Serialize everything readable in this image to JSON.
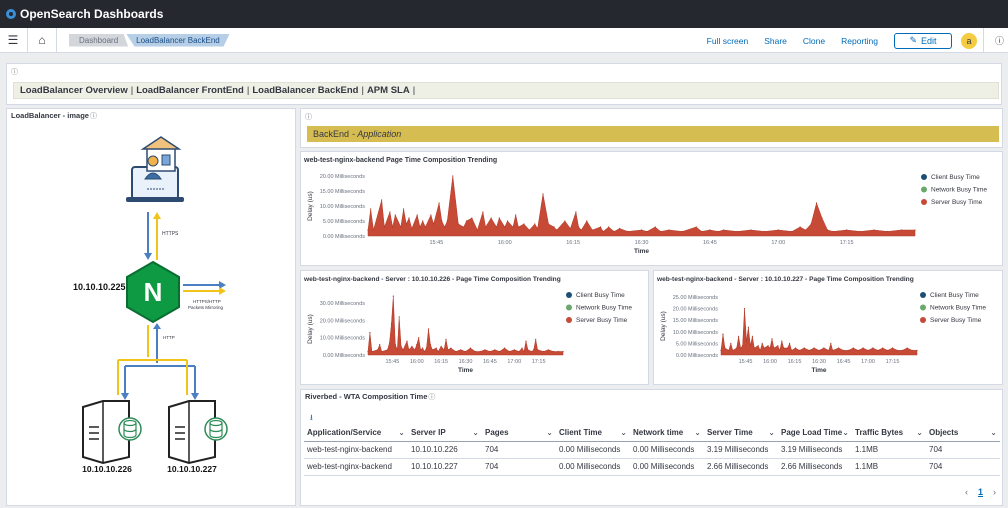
{
  "app": {
    "brand": "OpenSearch Dashboards"
  },
  "breadcrumbs": [
    "Dashboard",
    "LoadBalancer BackEnd"
  ],
  "nav_actions": {
    "full_screen": "Full screen",
    "share": "Share",
    "clone": "Clone",
    "reporting": "Reporting",
    "edit": "Edit",
    "avatar": "a"
  },
  "links": [
    "LoadBalancer Overview",
    "LoadBalancer FrontEnd",
    "LoadBalancer BackEnd",
    "APM SLA"
  ],
  "lb_panel": {
    "title": "LoadBalancer - image",
    "lb_ip": "10.10.10.225",
    "server1_ip": "10.10.10.226",
    "server2_ip": "10.10.10.227",
    "https_label": "HTTPS",
    "http_label": "HTTP",
    "mirror_label_1": "HTTPS/HTTP",
    "mirror_label_2": "Packets Mirroring"
  },
  "backend_banner": {
    "title": "BackEnd",
    "subtitle": "- Application"
  },
  "legend": [
    {
      "name": "Client Busy Time",
      "color": "#1d4f76"
    },
    {
      "name": "Network Busy Time",
      "color": "#6aa86b"
    },
    {
      "name": "Server Busy Time",
      "color": "#c64a36"
    }
  ],
  "table": {
    "title": "Riverbed - WTA Composition Time",
    "columns": [
      "Application/Service",
      "Server IP",
      "Pages",
      "Client Time",
      "Network time",
      "Server Time",
      "Page Load Time",
      "Traffic Bytes",
      "Objects"
    ],
    "rows": [
      [
        "web-test-nginx-backend",
        "10.10.10.226",
        "704",
        "0.00 Milliseconds",
        "0.00 Milliseconds",
        "3.19 Milliseconds",
        "3.19 Milliseconds",
        "1.1MB",
        "704"
      ],
      [
        "web-test-nginx-backend",
        "10.10.10.227",
        "704",
        "0.00 Milliseconds",
        "0.00 Milliseconds",
        "2.66 Milliseconds",
        "2.66 Milliseconds",
        "1.1MB",
        "704"
      ]
    ],
    "page": "1"
  },
  "chart_data": [
    {
      "type": "area",
      "title": "web-test-nginx-backend Page Time Composition Trending",
      "ylabel": "Delay (us)",
      "xlabel": "Time",
      "yticks": [
        "0.00 Milliseconds",
        "5.00 Milliseconds",
        "10.00 Milliseconds",
        "15.00 Milliseconds",
        "20.00 Milliseconds"
      ],
      "ylim": [
        0,
        20
      ],
      "xticks": [
        "15:45",
        "16:00",
        "16:15",
        "16:30",
        "16:45",
        "17:00",
        "17:15"
      ],
      "xlim": [
        15.5,
        17.5
      ],
      "legend_position": "right",
      "series": [
        {
          "name": "Server Busy Time",
          "points": [
            [
              15.5,
              2
            ],
            [
              15.51,
              9
            ],
            [
              15.52,
              2
            ],
            [
              15.55,
              12
            ],
            [
              15.56,
              3
            ],
            [
              15.58,
              8
            ],
            [
              15.59,
              3
            ],
            [
              15.6,
              7
            ],
            [
              15.62,
              3
            ],
            [
              15.63,
              9
            ],
            [
              15.64,
              4
            ],
            [
              15.65,
              6
            ],
            [
              15.66,
              2.5
            ],
            [
              15.68,
              7
            ],
            [
              15.69,
              3
            ],
            [
              15.7,
              5
            ],
            [
              15.71,
              3
            ],
            [
              15.73,
              7
            ],
            [
              15.74,
              4
            ],
            [
              15.76,
              11
            ],
            [
              15.77,
              5
            ],
            [
              15.78,
              3
            ],
            [
              15.79,
              5
            ],
            [
              15.81,
              20
            ],
            [
              15.83,
              4
            ],
            [
              15.85,
              3
            ],
            [
              15.86,
              5
            ],
            [
              15.88,
              6
            ],
            [
              15.9,
              2
            ],
            [
              15.92,
              8
            ],
            [
              15.93,
              3
            ],
            [
              15.95,
              6
            ],
            [
              15.97,
              3
            ],
            [
              15.98,
              6
            ],
            [
              16.0,
              3
            ],
            [
              16.01,
              5
            ],
            [
              16.03,
              3
            ],
            [
              16.04,
              7
            ],
            [
              16.05,
              3
            ],
            [
              16.07,
              4
            ],
            [
              16.09,
              2
            ],
            [
              16.11,
              4
            ],
            [
              16.12,
              2.5
            ],
            [
              16.14,
              14
            ],
            [
              16.16,
              4
            ],
            [
              16.18,
              3
            ],
            [
              16.19,
              2
            ],
            [
              16.22,
              5
            ],
            [
              16.24,
              2.5
            ],
            [
              16.26,
              8
            ],
            [
              16.27,
              3
            ],
            [
              16.28,
              2
            ],
            [
              16.3,
              5
            ],
            [
              16.32,
              2
            ],
            [
              16.35,
              3
            ],
            [
              16.36,
              1.5
            ],
            [
              16.38,
              3
            ],
            [
              16.4,
              1.5
            ],
            [
              16.42,
              2.5
            ],
            [
              16.45,
              1.5
            ],
            [
              16.5,
              2
            ],
            [
              16.52,
              1.5
            ],
            [
              16.55,
              3
            ],
            [
              16.57,
              1.5
            ],
            [
              16.6,
              2
            ],
            [
              16.65,
              1.5
            ],
            [
              16.7,
              3
            ],
            [
              16.72,
              1.5
            ],
            [
              16.75,
              2
            ],
            [
              16.78,
              1.5
            ],
            [
              16.8,
              2
            ],
            [
              16.85,
              1.5
            ],
            [
              16.9,
              2
            ],
            [
              16.95,
              1.5
            ],
            [
              17.0,
              2
            ],
            [
              17.05,
              1.5
            ],
            [
              17.08,
              3
            ],
            [
              17.1,
              2
            ],
            [
              17.12,
              4
            ],
            [
              17.14,
              11
            ],
            [
              17.16,
              6
            ],
            [
              17.18,
              2
            ],
            [
              17.2,
              1.5
            ],
            [
              17.25,
              2
            ],
            [
              17.3,
              1.5
            ],
            [
              17.35,
              2
            ],
            [
              17.4,
              1.5
            ],
            [
              17.45,
              2
            ],
            [
              17.5,
              2
            ]
          ]
        }
      ]
    },
    {
      "type": "area",
      "title": "web-test-nginx-backend - Server : 10.10.10.226 - Page Time Composition Trending",
      "ylabel": "Delay (us)",
      "xlabel": "Time",
      "yticks": [
        "0.00 Milliseconds",
        "10.00 Milliseconds",
        "20.00 Milliseconds",
        "30.00 Milliseconds"
      ],
      "ylim": [
        0,
        30
      ],
      "xticks": [
        "15:45",
        "16:00",
        "16:15",
        "16:30",
        "16:45",
        "17:00",
        "17:15"
      ],
      "xlim": [
        15.5,
        17.5
      ],
      "legend_position": "right",
      "series": [
        {
          "name": "Server Busy Time",
          "points": [
            [
              15.5,
              2
            ],
            [
              15.52,
              13
            ],
            [
              15.54,
              2
            ],
            [
              15.6,
              3
            ],
            [
              15.62,
              6
            ],
            [
              15.64,
              2
            ],
            [
              15.7,
              3
            ],
            [
              15.72,
              7
            ],
            [
              15.74,
              18
            ],
            [
              15.76,
              34
            ],
            [
              15.78,
              6
            ],
            [
              15.8,
              3
            ],
            [
              15.82,
              22
            ],
            [
              15.84,
              5
            ],
            [
              15.86,
              3
            ],
            [
              15.9,
              8
            ],
            [
              15.92,
              3
            ],
            [
              15.95,
              5
            ],
            [
              15.98,
              3
            ],
            [
              16.0,
              6
            ],
            [
              16.02,
              10
            ],
            [
              16.04,
              3
            ],
            [
              16.06,
              4
            ],
            [
              16.08,
              2
            ],
            [
              16.1,
              4
            ],
            [
              16.12,
              15
            ],
            [
              16.14,
              6
            ],
            [
              16.16,
              3
            ],
            [
              16.2,
              4
            ],
            [
              16.22,
              2
            ],
            [
              16.25,
              5
            ],
            [
              16.28,
              3
            ],
            [
              16.3,
              9
            ],
            [
              16.32,
              3
            ],
            [
              16.35,
              4
            ],
            [
              16.4,
              2
            ],
            [
              16.45,
              3
            ],
            [
              16.5,
              2
            ],
            [
              16.55,
              4
            ],
            [
              16.6,
              2
            ],
            [
              16.65,
              2
            ],
            [
              16.7,
              3
            ],
            [
              16.75,
              2
            ],
            [
              16.8,
              3
            ],
            [
              16.85,
              2
            ],
            [
              16.9,
              4
            ],
            [
              16.95,
              2
            ],
            [
              17.0,
              3
            ],
            [
              17.05,
              2
            ],
            [
              17.08,
              4
            ],
            [
              17.1,
              2
            ],
            [
              17.12,
              8
            ],
            [
              17.14,
              3
            ],
            [
              17.18,
              2
            ],
            [
              17.2,
              3
            ],
            [
              17.22,
              9
            ],
            [
              17.24,
              3
            ],
            [
              17.3,
              2
            ],
            [
              17.35,
              3
            ],
            [
              17.4,
              2
            ],
            [
              17.45,
              2
            ],
            [
              17.5,
              2
            ]
          ]
        }
      ]
    },
    {
      "type": "area",
      "title": "web-test-nginx-backend - Server : 10.10.10.227 - Page Time Composition Trending",
      "ylabel": "Delay (us)",
      "xlabel": "Time",
      "yticks": [
        "0.00 Milliseconds",
        "5.00 Milliseconds",
        "10.00 Milliseconds",
        "15.00 Milliseconds",
        "20.00 Milliseconds",
        "25.00 Milliseconds"
      ],
      "ylim": [
        0,
        25
      ],
      "xticks": [
        "15:45",
        "16:00",
        "16:15",
        "16:30",
        "16:45",
        "17:00",
        "17:15"
      ],
      "xlim": [
        15.5,
        17.5
      ],
      "legend_position": "right",
      "series": [
        {
          "name": "Server Busy Time",
          "points": [
            [
              15.5,
              2
            ],
            [
              15.52,
              9
            ],
            [
              15.54,
              3
            ],
            [
              15.58,
              2
            ],
            [
              15.6,
              5
            ],
            [
              15.62,
              2
            ],
            [
              15.66,
              3
            ],
            [
              15.68,
              8
            ],
            [
              15.7,
              3
            ],
            [
              15.72,
              4
            ],
            [
              15.74,
              20
            ],
            [
              15.76,
              6
            ],
            [
              15.78,
              12
            ],
            [
              15.8,
              4
            ],
            [
              15.82,
              8
            ],
            [
              15.84,
              3
            ],
            [
              15.88,
              4
            ],
            [
              15.9,
              2
            ],
            [
              15.92,
              5
            ],
            [
              15.94,
              3
            ],
            [
              15.98,
              4
            ],
            [
              16.0,
              3
            ],
            [
              16.02,
              7
            ],
            [
              16.04,
              3
            ],
            [
              16.08,
              4
            ],
            [
              16.1,
              2
            ],
            [
              16.12,
              6
            ],
            [
              16.14,
              3
            ],
            [
              16.18,
              3
            ],
            [
              16.2,
              5
            ],
            [
              16.22,
              2
            ],
            [
              16.26,
              3
            ],
            [
              16.3,
              2
            ],
            [
              16.35,
              3
            ],
            [
              16.4,
              2
            ],
            [
              16.45,
              3
            ],
            [
              16.5,
              2
            ],
            [
              16.55,
              3
            ],
            [
              16.6,
              2
            ],
            [
              16.62,
              5
            ],
            [
              16.64,
              2
            ],
            [
              16.7,
              3
            ],
            [
              16.75,
              2
            ],
            [
              16.8,
              2
            ],
            [
              16.85,
              3
            ],
            [
              16.9,
              2
            ],
            [
              16.95,
              3
            ],
            [
              17.0,
              2
            ],
            [
              17.05,
              3
            ],
            [
              17.1,
              2
            ],
            [
              17.15,
              3
            ],
            [
              17.2,
              2
            ],
            [
              17.25,
              3
            ],
            [
              17.3,
              2
            ],
            [
              17.35,
              2
            ],
            [
              17.4,
              3
            ],
            [
              17.45,
              2
            ],
            [
              17.5,
              2
            ]
          ]
        }
      ]
    }
  ]
}
